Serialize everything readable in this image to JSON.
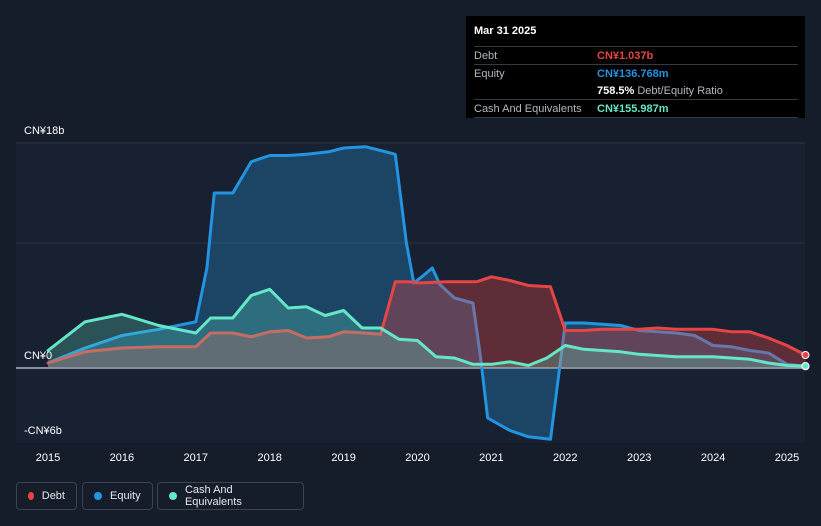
{
  "tooltip": {
    "date": "Mar 31 2025",
    "debt_label": "Debt",
    "debt_value": "CN¥1.037b",
    "equity_label": "Equity",
    "equity_value": "CN¥136.768m",
    "ratio_value": "758.5%",
    "ratio_label": "Debt/Equity Ratio",
    "cash_label": "Cash And Equivalents",
    "cash_value": "CN¥155.987m"
  },
  "axis": {
    "y_top_label": "CN¥18b",
    "y_zero_label": "CN¥0",
    "y_bottom_label": "-CN¥6b"
  },
  "legend": {
    "debt": "Debt",
    "equity": "Equity",
    "cash": "Cash And Equivalents"
  },
  "colors": {
    "debt": "#e64545",
    "equity": "#2394df",
    "cash": "#65e6c7",
    "background": "#151d2b"
  },
  "chart_data": {
    "type": "area",
    "x_unit": "year",
    "y_unit": "CN¥ billions",
    "ylim": [
      -6,
      18
    ],
    "x_ticks": [
      "2015",
      "2016",
      "2017",
      "2018",
      "2019",
      "2020",
      "2021",
      "2022",
      "2023",
      "2024",
      "2025"
    ],
    "grid": "horizontal",
    "series": [
      {
        "name": "Debt",
        "points": [
          [
            2015.0,
            0.4
          ],
          [
            2015.5,
            1.3
          ],
          [
            2016.0,
            1.6
          ],
          [
            2016.5,
            1.7
          ],
          [
            2017.0,
            1.7
          ],
          [
            2017.2,
            2.8
          ],
          [
            2017.5,
            2.8
          ],
          [
            2017.75,
            2.5
          ],
          [
            2018.0,
            2.9
          ],
          [
            2018.25,
            3.0
          ],
          [
            2018.5,
            2.4
          ],
          [
            2018.8,
            2.5
          ],
          [
            2019.0,
            2.9
          ],
          [
            2019.3,
            2.8
          ],
          [
            2019.5,
            2.7
          ],
          [
            2019.7,
            6.9
          ],
          [
            2019.9,
            6.9
          ],
          [
            2020.0,
            6.8
          ],
          [
            2020.4,
            6.9
          ],
          [
            2020.8,
            6.9
          ],
          [
            2021.0,
            7.3
          ],
          [
            2021.25,
            7.0
          ],
          [
            2021.5,
            6.6
          ],
          [
            2021.8,
            6.5
          ],
          [
            2022.0,
            3.0
          ],
          [
            2022.25,
            3.0
          ],
          [
            2022.5,
            3.1
          ],
          [
            2022.75,
            3.1
          ],
          [
            2023.0,
            3.1
          ],
          [
            2023.25,
            3.2
          ],
          [
            2023.5,
            3.1
          ],
          [
            2023.75,
            3.1
          ],
          [
            2024.0,
            3.1
          ],
          [
            2024.25,
            2.9
          ],
          [
            2024.5,
            2.9
          ],
          [
            2024.75,
            2.4
          ],
          [
            2025.0,
            1.8
          ],
          [
            2025.25,
            1.04
          ]
        ]
      },
      {
        "name": "Equity",
        "points": [
          [
            2015.0,
            0.4
          ],
          [
            2015.5,
            1.6
          ],
          [
            2016.0,
            2.6
          ],
          [
            2016.5,
            3.1
          ],
          [
            2017.0,
            3.7
          ],
          [
            2017.15,
            8.0
          ],
          [
            2017.25,
            14.0
          ],
          [
            2017.5,
            14.0
          ],
          [
            2017.75,
            16.5
          ],
          [
            2018.0,
            17.0
          ],
          [
            2018.25,
            17.0
          ],
          [
            2018.5,
            17.1
          ],
          [
            2018.8,
            17.3
          ],
          [
            2019.0,
            17.6
          ],
          [
            2019.3,
            17.7
          ],
          [
            2019.5,
            17.4
          ],
          [
            2019.7,
            17.1
          ],
          [
            2019.85,
            10.0
          ],
          [
            2019.95,
            6.8
          ],
          [
            2020.1,
            7.5
          ],
          [
            2020.2,
            8.0
          ],
          [
            2020.3,
            6.7
          ],
          [
            2020.5,
            5.6
          ],
          [
            2020.75,
            5.2
          ],
          [
            2020.85,
            1.0
          ],
          [
            2020.95,
            -4.0
          ],
          [
            2021.25,
            -5.0
          ],
          [
            2021.5,
            -5.5
          ],
          [
            2021.8,
            -5.7
          ],
          [
            2022.0,
            3.6
          ],
          [
            2022.25,
            3.6
          ],
          [
            2022.5,
            3.5
          ],
          [
            2022.75,
            3.4
          ],
          [
            2023.0,
            3.0
          ],
          [
            2023.25,
            2.9
          ],
          [
            2023.5,
            2.8
          ],
          [
            2023.75,
            2.6
          ],
          [
            2024.0,
            1.8
          ],
          [
            2024.25,
            1.7
          ],
          [
            2024.5,
            1.4
          ],
          [
            2024.75,
            1.2
          ],
          [
            2025.0,
            0.3
          ],
          [
            2025.25,
            0.14
          ]
        ]
      },
      {
        "name": "Cash And Equivalents",
        "points": [
          [
            2015.0,
            1.4
          ],
          [
            2015.5,
            3.7
          ],
          [
            2016.0,
            4.3
          ],
          [
            2016.5,
            3.4
          ],
          [
            2017.0,
            2.8
          ],
          [
            2017.2,
            4.0
          ],
          [
            2017.5,
            4.0
          ],
          [
            2017.75,
            5.8
          ],
          [
            2018.0,
            6.3
          ],
          [
            2018.25,
            4.8
          ],
          [
            2018.5,
            4.9
          ],
          [
            2018.75,
            4.2
          ],
          [
            2019.0,
            4.6
          ],
          [
            2019.25,
            3.2
          ],
          [
            2019.5,
            3.2
          ],
          [
            2019.75,
            2.3
          ],
          [
            2020.0,
            2.2
          ],
          [
            2020.25,
            0.9
          ],
          [
            2020.5,
            0.8
          ],
          [
            2020.75,
            0.3
          ],
          [
            2021.0,
            0.3
          ],
          [
            2021.25,
            0.5
          ],
          [
            2021.5,
            0.2
          ],
          [
            2021.75,
            0.8
          ],
          [
            2022.0,
            1.8
          ],
          [
            2022.25,
            1.5
          ],
          [
            2022.5,
            1.4
          ],
          [
            2022.75,
            1.3
          ],
          [
            2023.0,
            1.1
          ],
          [
            2023.25,
            1.0
          ],
          [
            2023.5,
            0.9
          ],
          [
            2023.75,
            0.9
          ],
          [
            2024.0,
            0.9
          ],
          [
            2024.25,
            0.8
          ],
          [
            2024.5,
            0.7
          ],
          [
            2024.75,
            0.4
          ],
          [
            2025.0,
            0.2
          ],
          [
            2025.25,
            0.16
          ]
        ]
      }
    ]
  }
}
